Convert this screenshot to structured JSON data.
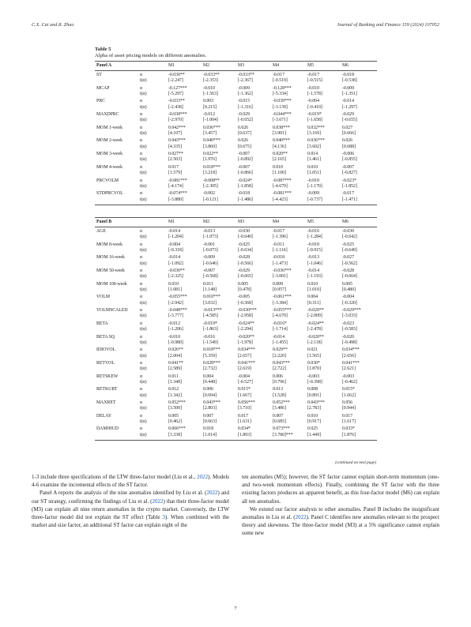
{
  "header": {
    "authors": "C.X. Cai and R. Zhao",
    "journal": "Journal of Banking and Finance 159 (2024) 107052"
  },
  "table": {
    "label": "Table 5",
    "caption": "Alpha of asset pricing models on different anomalies.",
    "columns": [
      "M1",
      "M2",
      "M3",
      "M4",
      "M5",
      "M6"
    ],
    "stat_alpha": "α",
    "stat_t": "t(α)",
    "continued": "(continued on next page)",
    "panel_a": {
      "title": "Panel A",
      "rows": [
        {
          "name": "ST",
          "alpha": [
            "-0.030**",
            "-0.033**",
            "-0.033**",
            "-0.017",
            "-0.017",
            "-0.018"
          ],
          "t": [
            "[-2.247]",
            "[-2.353]",
            "[-2.367]",
            "[-0.519]",
            "[-0.515]",
            "[-0.538]"
          ]
        },
        {
          "name": "MCAP",
          "alpha": [
            "-0.127***",
            "-0.010",
            "-0.009",
            "-0.128***",
            "-0.010",
            "-0.009"
          ],
          "t": [
            "[-5.297]",
            "[-1.563]",
            "[-1.362]",
            "[-5.334]",
            "[-1.578]",
            "[-1.351]"
          ]
        },
        {
          "name": "PRC",
          "alpha": [
            "-0.033**",
            "0.003",
            "-0.015",
            "-0.039***",
            "-0.004",
            "-0.014"
          ],
          "t": [
            "[-2.438]",
            "[0.215]",
            "[-1.316]",
            "[-3.139]",
            "[-0.410]",
            "[-1.297]"
          ]
        },
        {
          "name": "MAXDPRC",
          "alpha": [
            "-0.038***",
            "-0.012",
            "-0.029",
            "-0.044***",
            "-0.019*",
            "-0.029"
          ],
          "t": [
            "[-2.970]",
            "[-1.004]",
            "[-0.652]",
            "[-3.671]",
            "[-1.658]",
            "[-0.655]"
          ]
        },
        {
          "name": "MOM 1-week",
          "alpha": [
            "0.042***",
            "0.036***",
            "0.026",
            "0.038***",
            "0.032***",
            "0.027"
          ],
          "t": [
            "[4.107]",
            "[3.457]",
            "[0.637]",
            "[3.901]",
            "[3.169]",
            "[0.666]"
          ]
        },
        {
          "name": "MOM 2-week",
          "alpha": [
            "0.043***",
            "0.040***",
            "0.026",
            "0.040***",
            "0.036***",
            "0.026"
          ],
          "t": [
            "[4.335]",
            "[3.860]",
            "[0.675]",
            "[4.136]",
            "[3.602]",
            "[0.688]"
          ]
        },
        {
          "name": "MOM 3-week",
          "alpha": [
            "0.027**",
            "0.022**",
            "-0.007",
            "0.020**",
            "0.014",
            "-0.006"
          ],
          "t": [
            "[2.503]",
            "[1.976]",
            "[-0.892]",
            "[2.165]",
            "[1.461]",
            "[-0.855]"
          ]
        },
        {
          "name": "MOM 4-week",
          "alpha": [
            "0.017",
            "0.018***",
            "-0.007",
            "0.010",
            "0.010",
            "-0.007"
          ],
          "t": [
            "[1.579]",
            "[3.218]",
            "[-0.866]",
            "[1.100]",
            "[1.051]",
            "[-0.827]"
          ]
        },
        {
          "name": "PRCVOLM",
          "alpha": [
            "-0.081***",
            "-0.008**",
            "-0.024*",
            "-0.087***",
            "-0.010",
            "-0.023*"
          ],
          "t": [
            "[-4.174]",
            "[-2.305]",
            "[-1.858]",
            "[-4.679]",
            "[-1.170]",
            "[-1.852]"
          ]
        },
        {
          "name": "STDPRCVOL",
          "alpha": [
            "-0.074***",
            "-0.002",
            "-0.018",
            "-0.081***",
            "-0.009",
            "-0.017"
          ],
          "t": [
            "[-3.880]",
            "[-0.121]",
            "[-1.486]",
            "[-4.423]",
            "[-0.737]",
            "[-1.471]"
          ]
        }
      ]
    },
    "panel_b": {
      "title": "Panel B",
      "rows": [
        {
          "name": "AGE",
          "alpha": [
            "-0.014",
            "-0.013",
            "-0.030",
            "-0.017",
            "-0.016",
            "-0.030"
          ],
          "t": [
            "[-1.204]",
            "[-1.073]",
            "[-0.640]",
            "[-1.396]",
            "[-1.284]",
            "[-0.642]"
          ]
        },
        {
          "name": "MOM 8-week",
          "alpha": [
            "-0.004",
            "-0.001",
            "-0.025",
            "-0.011",
            "-0.010",
            "-0.025"
          ],
          "t": [
            "[-0.318]",
            "[-0.073]",
            "[-0.634]",
            "[-1.116]",
            "[-0.915]",
            "[-0.649]"
          ]
        },
        {
          "name": "MOM 16-week",
          "alpha": [
            "-0.014",
            "-0.009",
            "-0.028",
            "-0.018",
            "-0.013",
            "-0.027"
          ],
          "t": [
            "[-1.092]",
            "[-0.646]",
            "[-0.566]",
            "[-1.473]",
            "[-1.046]",
            "[-0.562]"
          ]
        },
        {
          "name": "MOM 50-week",
          "alpha": [
            "-0.030**",
            "-0.007",
            "-0.029",
            "-0.036***",
            "-0.014",
            "-0.028"
          ],
          "t": [
            "[-2.325]",
            "[-0.568]",
            "[-0.665]",
            "[-3.001]",
            "[-1.193]",
            "[-0.664]"
          ]
        },
        {
          "name": "MOM 100-week",
          "alpha": [
            "0.010",
            "0.011",
            "0.005",
            "0.009",
            "0.010",
            "0.005"
          ],
          "t": [
            "[1.081]",
            "[1.148]",
            "[0.478]",
            "[0.957]",
            "[1.010]",
            "[0.480]"
          ]
        },
        {
          "name": "VOLM",
          "alpha": [
            "-0.055***",
            "0.010***",
            "-0.005",
            "-0.061***",
            "0.004",
            "-0.004"
          ],
          "t": [
            "[-2.942]",
            "[3.032]",
            "[-0.368]",
            "[-3.384]",
            "[0.311]",
            "[-0.320]"
          ]
        },
        {
          "name": "VOLMSCALED",
          "alpha": [
            "-0.048***",
            "-0.013***",
            "-0.030***",
            "-0.055***",
            "-0.020**",
            "-0.029***"
          ],
          "t": [
            "[-3.777]",
            "[-4.585]",
            "[-2.958]",
            "[-4.670]",
            "[-2.009]",
            "[-3.033]"
          ]
        },
        {
          "name": "BETA",
          "alpha": [
            "-0.012",
            "-0.019*",
            "-0.024**",
            "-0.016*",
            "-0.024**",
            "-0.023"
          ],
          "t": [
            "[-1.206]",
            "[-1.863]",
            "[-2.294]",
            "[-1.714]",
            "[-2.478]",
            "[-0.583]"
          ]
        },
        {
          "name": "BETA SQ",
          "alpha": [
            "-0.010",
            "-0.016",
            "-0.020**",
            "-0.014",
            "-0.020**",
            "-0.020"
          ],
          "t": [
            "[-0.980]",
            "[-1.549]",
            "[-1.978]",
            "[-1.455]",
            "[-2.118]",
            "[-0.498]"
          ]
        },
        {
          "name": "IDIOVOL",
          "alpha": [
            "0.026**",
            "0.018***",
            "0.034***",
            "0.029**",
            "0.021",
            "0.034***"
          ],
          "t": [
            "[2.004]",
            "[5.359]",
            "[2.657]",
            "[2.220]",
            "[1.565]",
            "[2.656]"
          ]
        },
        {
          "name": "RETVOL",
          "alpha": [
            "0.041**",
            "0.028***",
            "0.041***",
            "0.043***",
            "0.030*",
            "0.041***"
          ],
          "t": [
            "[2.589]",
            "[2.732]",
            "[2.619]",
            "[2.722]",
            "[1.870]",
            "[2.621]"
          ]
        },
        {
          "name": "RETSKEW",
          "alpha": [
            "0.011",
            "0.004",
            "-0.004",
            "0.006",
            "-0.003",
            "-0.003"
          ],
          "t": [
            "[1.348]",
            "[0.448]",
            "[-0.527]",
            "[0.796]",
            "[-0.398]",
            "[-0.462]"
          ]
        },
        {
          "name": "RETKURT",
          "alpha": [
            "0.012",
            "0.006",
            "0.015*",
            "0.013",
            "0.008",
            "0.015*"
          ],
          "t": [
            "[1.342]",
            "[0.694]",
            "[1.667]",
            "[1.528]",
            "[0.891]",
            "[1.662]"
          ]
        },
        {
          "name": "MAXRET",
          "alpha": [
            "0.052***",
            "0.043***",
            "0.056***",
            "0.052***",
            "0.043***",
            "0.056"
          ],
          "t": [
            "[3.500]",
            "[2.803]",
            "[3.710]",
            "[3.486]",
            "[2.783]",
            "[0.944]"
          ]
        },
        {
          "name": "DELAY",
          "alpha": [
            "0.005",
            "0.007",
            "0.017",
            "0.007",
            "0.010",
            "0.017"
          ],
          "t": [
            "[0.462]",
            "[0.663]",
            "[1.631]",
            "[0.685]",
            "[0.917]",
            "[1.617]"
          ]
        },
        {
          "name": "DAMIHUD",
          "alpha": [
            "0.066***",
            "0.018",
            "0.034*",
            "0.073***",
            "0.025",
            "0.033*"
          ],
          "t": [
            "[3.338]",
            "[1.014]",
            "[1.893]",
            "[3.780]***",
            "[1.449]",
            "[1.876]"
          ]
        }
      ]
    }
  },
  "text_left": {
    "p1_a": "1-3 include three specifications of the LTW three-factor model (Liu et al., ",
    "p1_link1": "2022",
    "p1_b": "). Models 4-6 examine the incremental effects of the ST factor.",
    "p2_a": "Panel A reports the analysis of the nine anomalies identified by Liu et al. (",
    "p2_link1": "2022",
    "p2_b": ") and our ST strategy, confirming the findings of Liu et al. (",
    "p2_link2": "2022",
    "p2_c": ") that their three-factor model (M3) can explain all nine return anomalies in the crypto market. Conversely, the LTW three-factor model did not explain the ST effect (Table ",
    "p2_link3": "3",
    "p2_d": "). When combined with the market and size factor, an additional ST factor can explain eight of the"
  },
  "text_right": {
    "p1": "ten anomalies (M5); however, the ST factor cannot explain short-term momentum (one- and two-week momentum effects). Finally, combining the ST factor with the three existing factors produces an apparent benefit, as this four-factor model (M6) can explain all ten anomalies.",
    "p2_a": "We extend our factor analysis to other anomalies. Panel B includes the insignificant anomalies in Liu et al. (",
    "p2_link1": "2022",
    "p2_b": "). Panel C identifies new anomalies relevant to the prospect theory and skewness. The three-factor model (M3) at a 5% significance cannot explain some new"
  },
  "page_number": "7"
}
